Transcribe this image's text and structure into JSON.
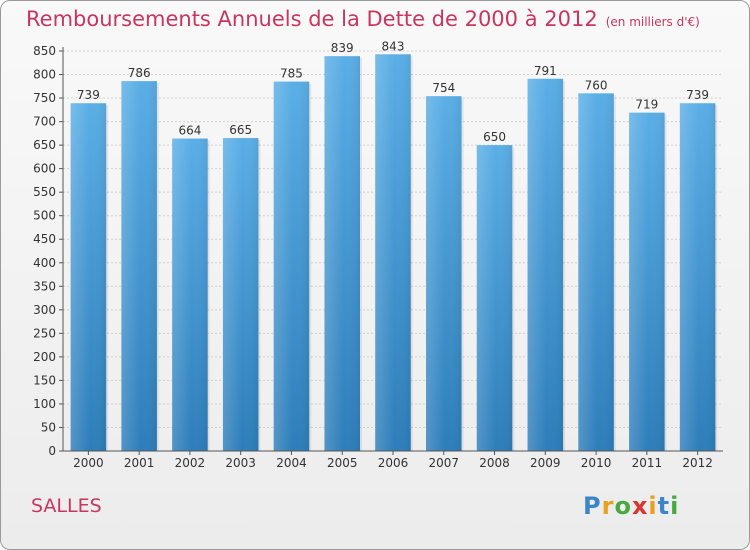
{
  "header": {
    "title": "Remboursements Annuels de la Dette de 2000 à 2012",
    "subtitle": "(en milliers d'€)"
  },
  "footer": {
    "commune": "SALLES",
    "logo_text": "Proxiti"
  },
  "colors": {
    "bar_top": "#5aaee6",
    "bar_bottom": "#2d7dba",
    "title": "#c8365f",
    "grid": "#d0d0d0",
    "axis": "#555555"
  },
  "chart_data": {
    "type": "bar",
    "title": "Remboursements Annuels de la Dette de 2000 à 2012",
    "xlabel": "",
    "ylabel": "",
    "categories": [
      "2000",
      "2001",
      "2002",
      "2003",
      "2004",
      "2005",
      "2006",
      "2007",
      "2008",
      "2009",
      "2010",
      "2011",
      "2012"
    ],
    "values": [
      739,
      786,
      664,
      665,
      785,
      839,
      843,
      754,
      650,
      791,
      760,
      719,
      739
    ],
    "ylim": [
      0,
      850
    ],
    "yticks": [
      0,
      50,
      100,
      150,
      200,
      250,
      300,
      350,
      400,
      450,
      500,
      550,
      600,
      650,
      700,
      750,
      800,
      850
    ],
    "grid": true,
    "legend": "none"
  }
}
